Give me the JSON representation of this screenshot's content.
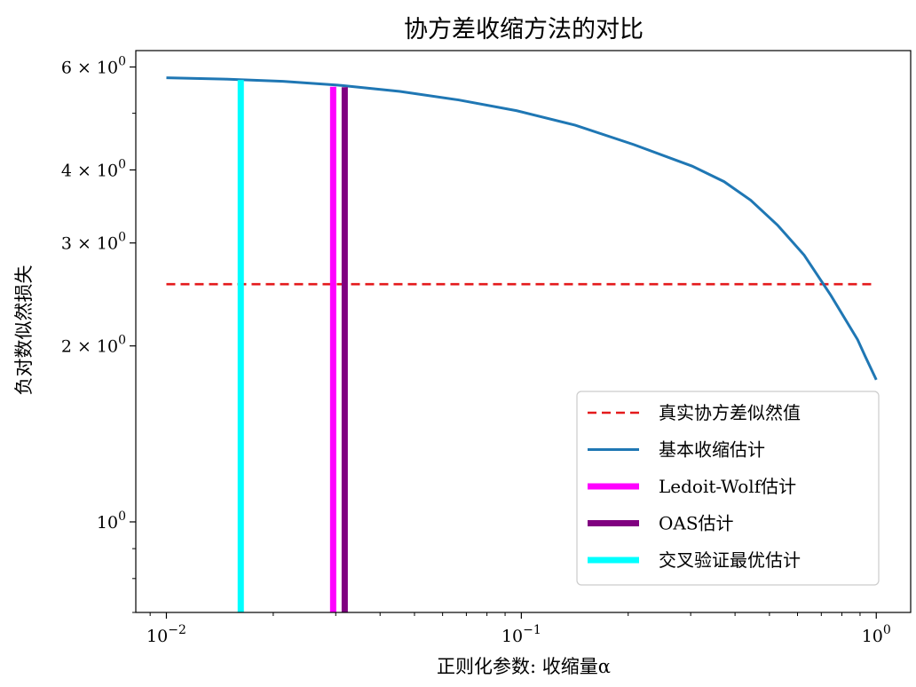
{
  "chart_data": {
    "type": "line",
    "title": "协方差收缩方法的对比",
    "xlabel": "正则化参数: 收缩量α",
    "ylabel": "负对数似然损失",
    "xscale": "log",
    "yscale": "log",
    "xlim": [
      0.0082,
      1.25
    ],
    "ylim": [
      0.7,
      6.4
    ],
    "grid": false,
    "legend_position": "lower-right",
    "x_ticks": [
      {
        "value": 0.01,
        "base": "10",
        "exp": "−2"
      },
      {
        "value": 0.1,
        "base": "10",
        "exp": "−1"
      },
      {
        "value": 1,
        "base": "10",
        "exp": "0"
      }
    ],
    "y_ticks": [
      {
        "value": 1,
        "mant": "",
        "base": "10",
        "exp": "0"
      },
      {
        "value": 2,
        "mant": "2 × ",
        "base": "10",
        "exp": "0"
      },
      {
        "value": 3,
        "mant": "3 × ",
        "base": "10",
        "exp": "0"
      },
      {
        "value": 4,
        "mant": "4 × ",
        "base": "10",
        "exp": "0"
      },
      {
        "value": 6,
        "mant": "6 × ",
        "base": "10",
        "exp": "0"
      }
    ],
    "series": [
      {
        "name": "真实协方差似然值",
        "kind": "hline",
        "color": "#e41a1c",
        "dash": "dashed",
        "y": 2.55
      },
      {
        "name": "基本收缩估计",
        "kind": "line",
        "color": "#1f77b4",
        "x": [
          0.01,
          0.0146,
          0.0213,
          0.0311,
          0.0455,
          0.0665,
          0.0971,
          0.1419,
          0.2073,
          0.3029,
          0.3725,
          0.4427,
          0.5266,
          0.6263,
          0.7449,
          0.8859,
          0.9305,
          1.0
        ],
        "y": [
          5.75,
          5.72,
          5.67,
          5.58,
          5.45,
          5.27,
          5.05,
          4.77,
          4.42,
          4.06,
          3.82,
          3.55,
          3.22,
          2.86,
          2.44,
          2.05,
          1.92,
          1.75
        ]
      },
      {
        "name": "Ledoit-Wolf估计",
        "kind": "vline",
        "color": "#ff00ff",
        "x": 0.0295,
        "y_top": 5.55
      },
      {
        "name": "OAS估计",
        "kind": "vline",
        "color": "#800080",
        "x": 0.0318,
        "y_top": 5.54
      },
      {
        "name": "交叉验证最优估计",
        "kind": "vline",
        "color": "#00ffff",
        "x": 0.0162,
        "y_top": 5.7
      }
    ]
  }
}
